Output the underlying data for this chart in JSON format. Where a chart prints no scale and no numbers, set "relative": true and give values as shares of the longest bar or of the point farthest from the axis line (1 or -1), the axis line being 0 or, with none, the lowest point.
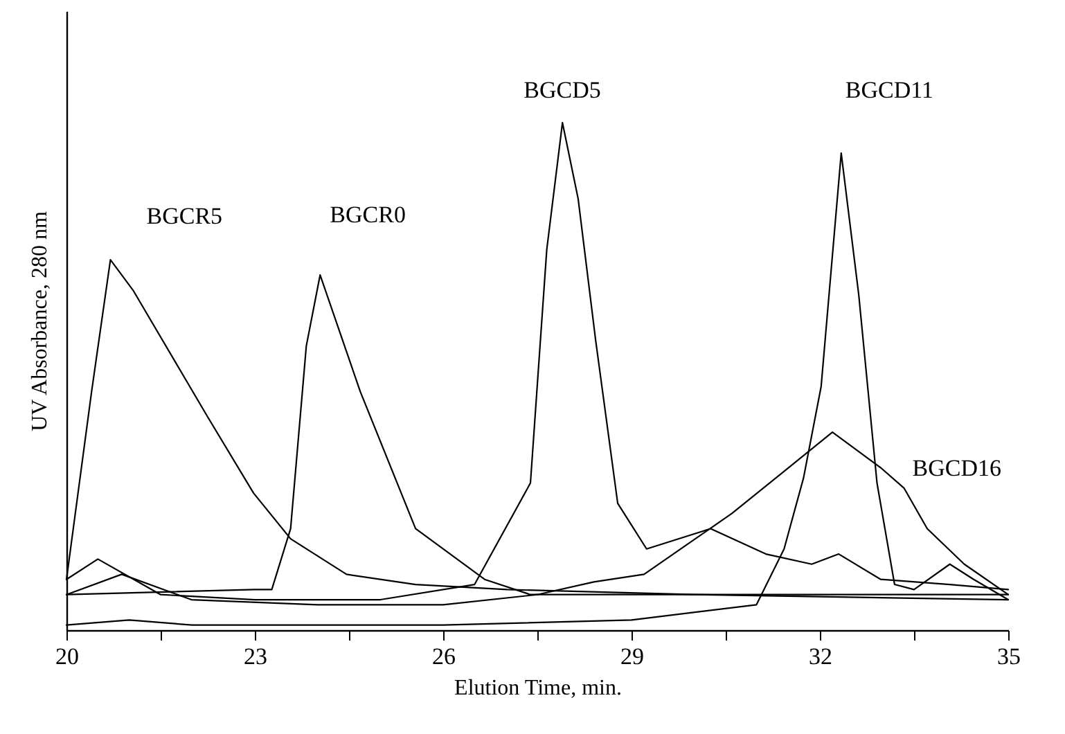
{
  "chart_data": {
    "type": "line",
    "relative": true,
    "xlabel": "Elution Time, min.",
    "ylabel": "UV Absorbance, 280 nm",
    "xlim": [
      20,
      35
    ],
    "xticks": [
      20,
      {
        "value": 21.5,
        "label": null
      },
      23,
      {
        "value": 24.5,
        "label": null
      },
      26,
      {
        "value": 27.5,
        "label": null
      },
      29,
      {
        "value": 30.5,
        "label": null
      },
      32,
      {
        "value": 33.5,
        "label": null
      },
      35
    ],
    "grid": false,
    "marker": "none",
    "series": [
      {
        "name": "BGCR5",
        "color": "#000000",
        "x": [
          20.0,
          20.4,
          20.7,
          21.06,
          22.25,
          22.98,
          23.57,
          24.46,
          25.56,
          27.02,
          30.0,
          35.0
        ],
        "values": [
          0.1,
          0.47,
          0.73,
          0.67,
          0.42,
          0.27,
          0.18,
          0.11,
          0.09,
          0.08,
          0.07,
          0.07
        ]
      },
      {
        "name": "BGCR0",
        "color": "#000000",
        "x": [
          20.0,
          23.0,
          23.27,
          23.57,
          23.82,
          24.04,
          24.68,
          25.56,
          26.66,
          27.39,
          30.0,
          35.0
        ],
        "values": [
          0.07,
          0.08,
          0.08,
          0.2,
          0.56,
          0.7,
          0.47,
          0.2,
          0.1,
          0.07,
          0.07,
          0.06
        ]
      },
      {
        "name": "BGCD5",
        "color": "#000000",
        "x": [
          20.0,
          20.5,
          21.5,
          23.0,
          25.0,
          26.5,
          27.39,
          27.65,
          27.9,
          28.15,
          28.43,
          28.78,
          29.24,
          30.26,
          31.14,
          31.87,
          32.3,
          32.97,
          34.07,
          35.0
        ],
        "values": [
          0.1,
          0.14,
          0.07,
          0.06,
          0.06,
          0.09,
          0.29,
          0.75,
          1.0,
          0.85,
          0.57,
          0.25,
          0.16,
          0.2,
          0.15,
          0.13,
          0.15,
          0.1,
          0.09,
          0.08
        ]
      },
      {
        "name": "BGCD11",
        "color": "#000000",
        "x": [
          20.0,
          21.0,
          22.0,
          26.0,
          29.0,
          30.99,
          31.43,
          31.74,
          32.02,
          32.34,
          32.62,
          32.91,
          33.19,
          33.5,
          34.07,
          34.45,
          35.0
        ],
        "values": [
          0.01,
          0.02,
          0.01,
          0.01,
          0.02,
          0.05,
          0.16,
          0.3,
          0.48,
          0.94,
          0.66,
          0.29,
          0.09,
          0.08,
          0.13,
          0.1,
          0.06
        ]
      },
      {
        "name": "BGCD16",
        "color": "#000000",
        "x": [
          20.0,
          20.88,
          21.99,
          24.0,
          26.0,
          27.5,
          28.4,
          29.2,
          29.9,
          30.6,
          31.4,
          32.2,
          32.97,
          33.34,
          33.71,
          34.3,
          35.0
        ],
        "values": [
          0.07,
          0.11,
          0.06,
          0.05,
          0.05,
          0.07,
          0.095,
          0.11,
          0.17,
          0.23,
          0.31,
          0.39,
          0.32,
          0.28,
          0.2,
          0.13,
          0.07
        ]
      }
    ]
  }
}
